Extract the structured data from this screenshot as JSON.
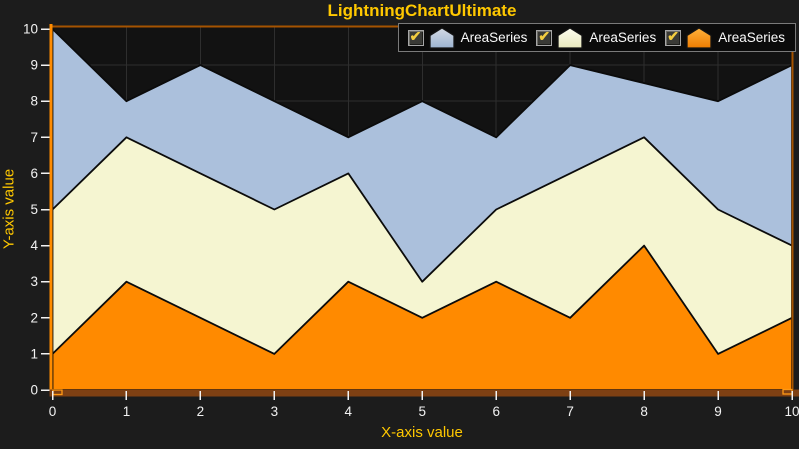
{
  "window": {
    "title": "LightningChartUltimate"
  },
  "colors": {
    "background": "#1C1C1C",
    "plot_background": "#121212",
    "grid": "#2E2E2E",
    "title_text": "#FFC800",
    "axis_label_text": "#FFC800",
    "tick_text": "#F2F2F2",
    "y_axis_line": "#FF8C00",
    "plot_border": "#A55300",
    "x_axis_strip": "#7E4013",
    "scroll_nub": "#FF9914",
    "series_outline": "#0B0B0B",
    "legend_background": "#0B0B0B",
    "legend_border": "#7A7A7A",
    "legend_text": "#FAFAFA",
    "checkbox_check": "#F2CC40"
  },
  "legend": {
    "items": [
      {
        "label": "AreaSeries",
        "checked": true
      },
      {
        "label": "AreaSeries",
        "checked": true
      },
      {
        "label": "AreaSeries",
        "checked": true
      }
    ]
  },
  "chart_data": {
    "type": "area",
    "title": "LightningChartUltimate",
    "xlabel": "X-axis value",
    "ylabel": "Y-axis value",
    "xlim": [
      0,
      10
    ],
    "ylim": [
      0,
      10
    ],
    "grid": true,
    "legend_position": "top-right",
    "x_ticks": [
      0,
      1,
      2,
      3,
      4,
      5,
      6,
      7,
      8,
      9,
      10
    ],
    "y_ticks": [
      0,
      1,
      2,
      3,
      4,
      5,
      6,
      7,
      8,
      9,
      10
    ],
    "x": [
      0,
      1,
      2,
      3,
      4,
      5,
      6,
      7,
      8,
      9,
      10
    ],
    "series": [
      {
        "name": "AreaSeries",
        "fill": "#ABC0DC",
        "glyph_top": "#D4DAE4",
        "glyph_bottom": "#9CB3D1",
        "values": [
          10,
          8,
          9,
          8,
          7,
          8,
          7,
          9,
          8.5,
          8,
          9
        ]
      },
      {
        "name": "AreaSeries",
        "fill": "#F5F5D1",
        "glyph_top": "#FCFCEF",
        "glyph_bottom": "#E9E9BD",
        "values": [
          5,
          7,
          6,
          5,
          6,
          3,
          5,
          6,
          7,
          5,
          4
        ]
      },
      {
        "name": "AreaSeries",
        "fill": "#FF8A00",
        "glyph_top": "#FFB23C",
        "glyph_bottom": "#EE7C00",
        "values": [
          1,
          3,
          2,
          1,
          3,
          2,
          3,
          2,
          4,
          1,
          2
        ]
      }
    ]
  }
}
